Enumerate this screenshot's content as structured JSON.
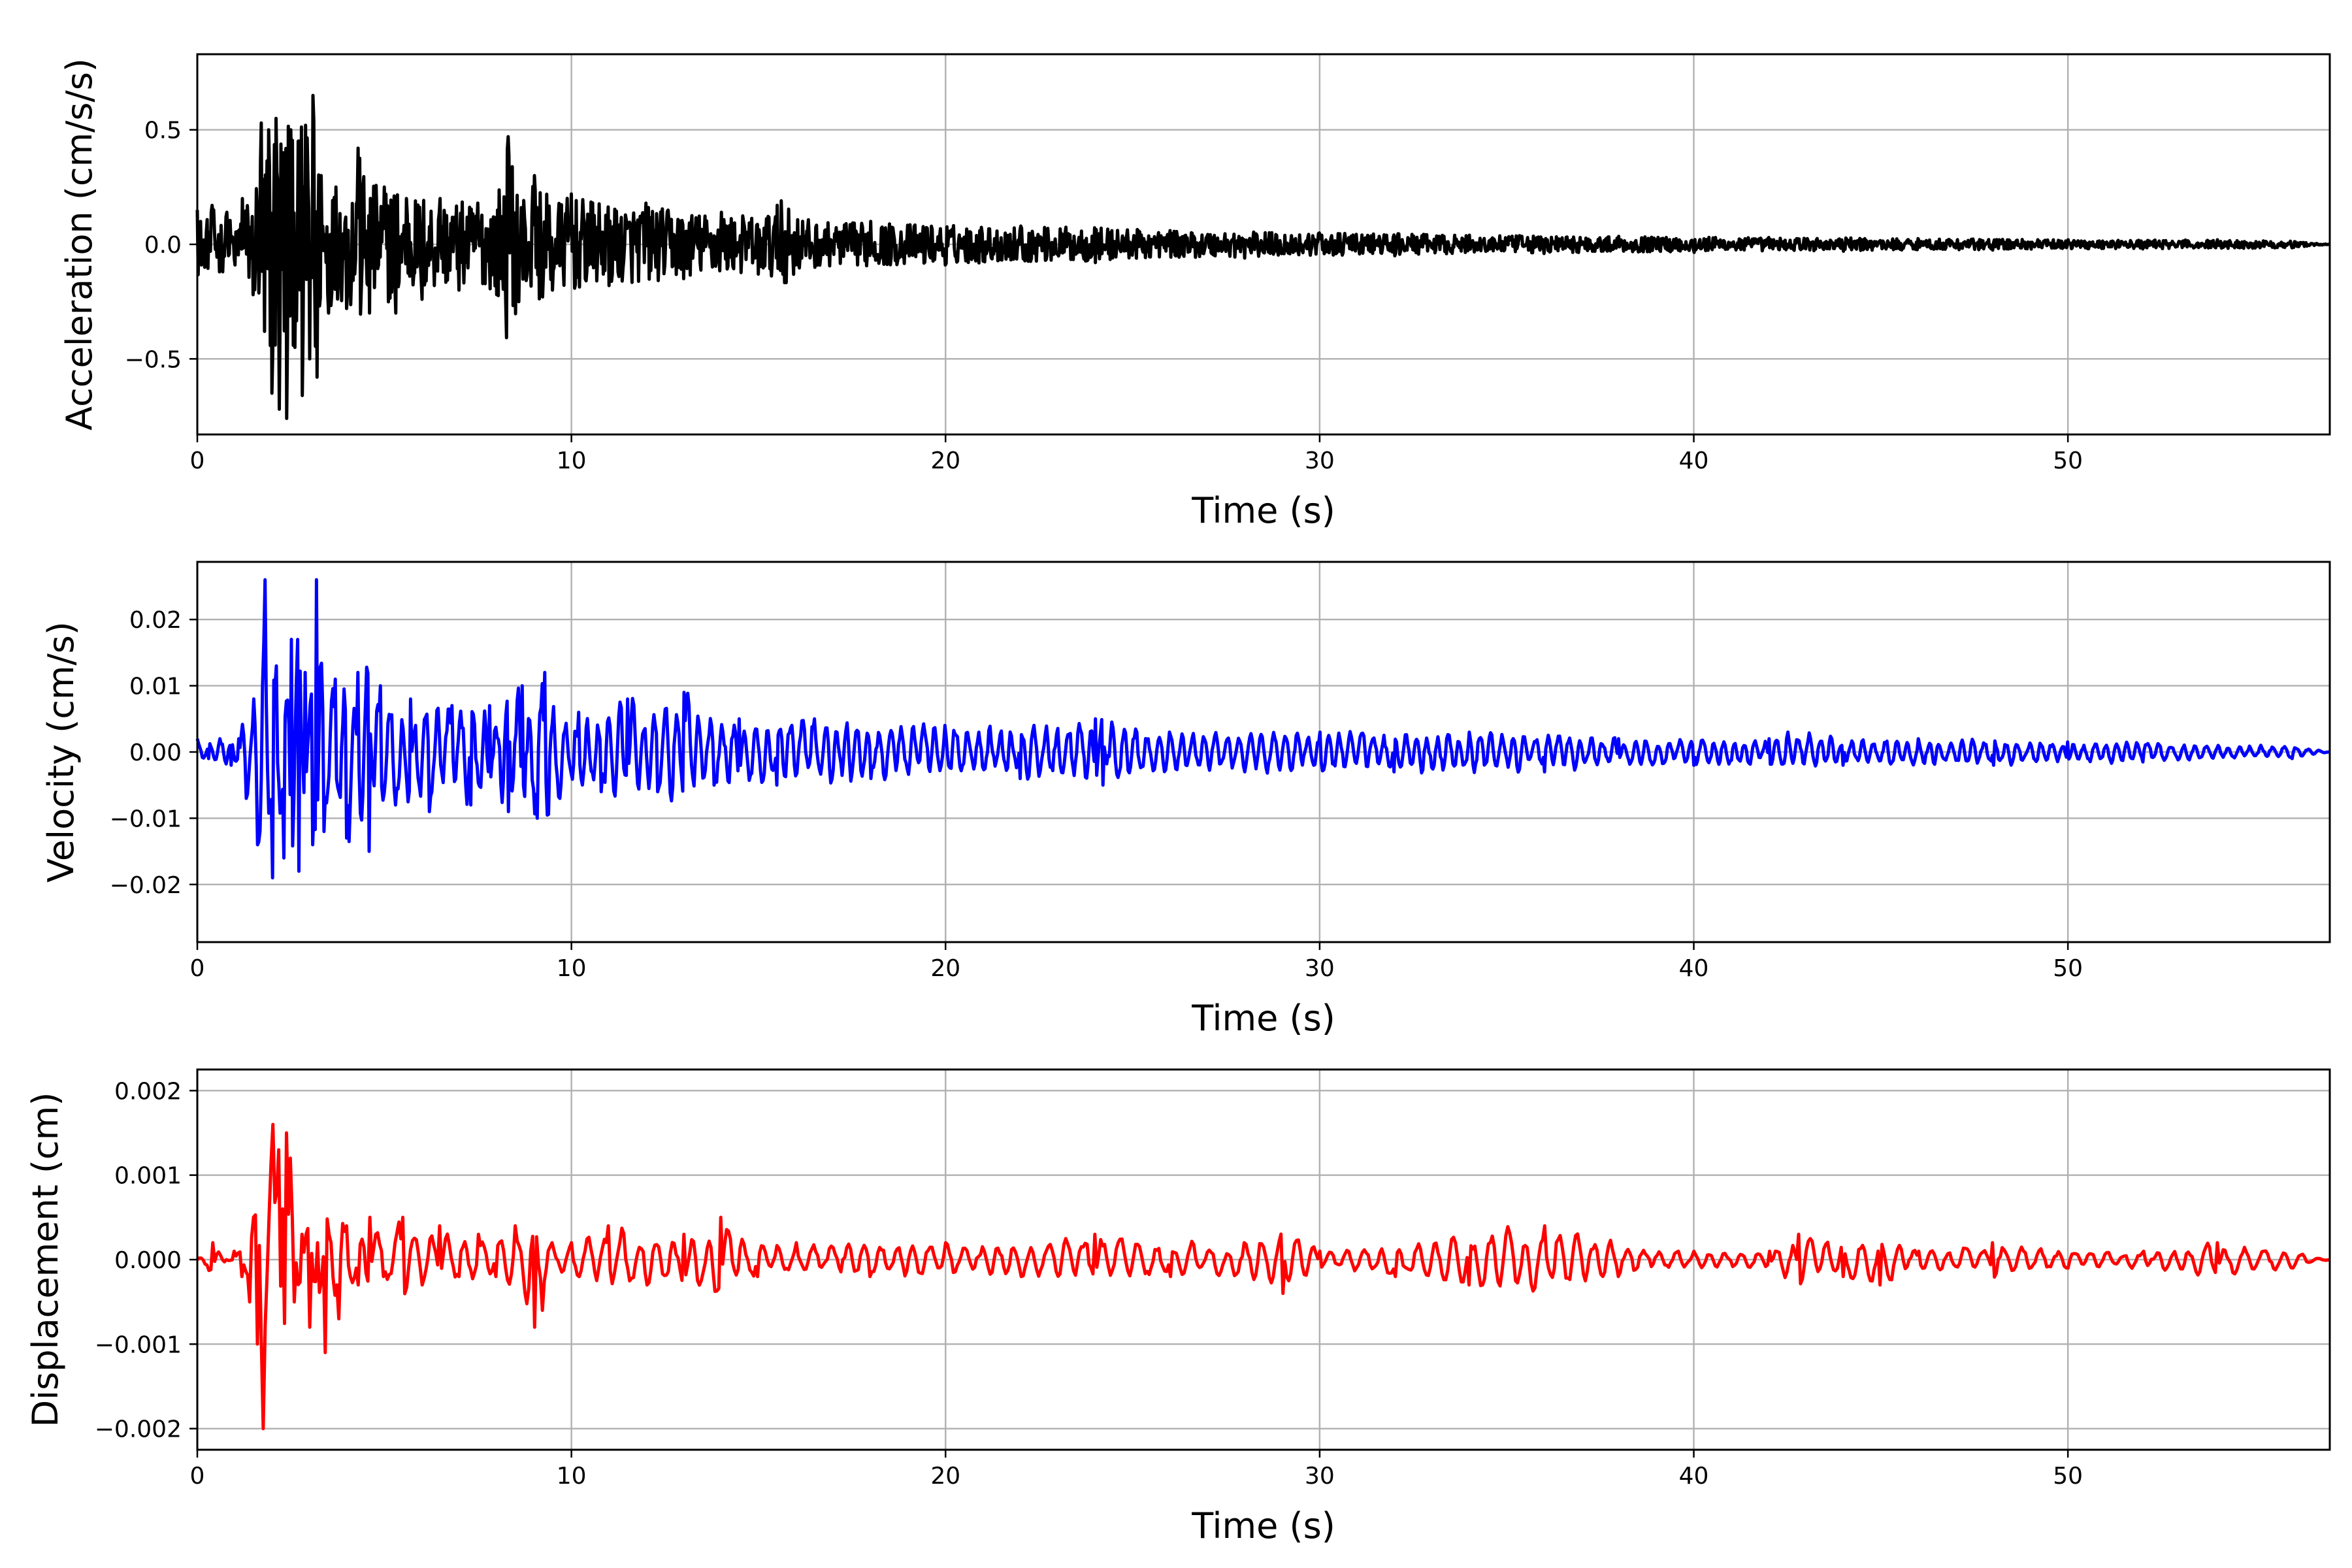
{
  "chart_data": [
    {
      "type": "line",
      "xlabel": "Time (s)",
      "ylabel": "Acceleration (cm/s/s)",
      "xlim": [
        0,
        57
      ],
      "ylim": [
        -0.83,
        0.83
      ],
      "xticks": [
        0,
        10,
        20,
        30,
        40,
        50
      ],
      "xtick_labels": [
        "0",
        "10",
        "20",
        "30",
        "40",
        "50"
      ],
      "yticks": [
        -0.5,
        0.0,
        0.5
      ],
      "ytick_labels": [
        "−0.5",
        "0.0",
        "0.5"
      ],
      "grid": true,
      "series": [
        {
          "color": "#000000",
          "x": [
            0,
            0.2,
            0.4,
            0.6,
            0.8,
            1.0,
            1.2,
            1.5,
            1.7,
            1.8,
            1.9,
            2.0,
            2.1,
            2.2,
            2.3,
            2.4,
            2.5,
            2.6,
            2.7,
            2.8,
            2.9,
            3.0,
            3.1,
            3.2,
            3.3,
            3.5,
            3.7,
            4.0,
            4.3,
            4.6,
            5.0,
            5.3,
            5.6,
            6.0,
            6.5,
            7.0,
            7.5,
            8.0,
            8.3,
            8.6,
            9.0,
            9.5,
            10.0,
            11.0,
            12.0,
            13.0,
            14.0,
            15.0,
            15.6,
            16.5,
            18,
            20,
            22,
            24,
            26,
            28,
            30,
            32,
            34,
            36,
            38,
            40,
            42,
            44,
            46,
            48,
            50,
            52,
            54,
            56,
            57
          ],
          "y": [
            0.15,
            -0.1,
            0.17,
            -0.12,
            0.14,
            -0.09,
            0.2,
            -0.22,
            0.53,
            -0.38,
            0.5,
            -0.65,
            0.55,
            -0.72,
            0.4,
            -0.76,
            0.5,
            -0.45,
            0.45,
            -0.66,
            0.52,
            -0.5,
            0.65,
            -0.58,
            0.3,
            -0.3,
            0.25,
            -0.28,
            0.42,
            -0.3,
            0.25,
            -0.3,
            0.2,
            -0.24,
            0.2,
            -0.2,
            0.18,
            -0.22,
            0.47,
            -0.25,
            0.3,
            -0.2,
            0.22,
            -0.18,
            0.18,
            -0.15,
            0.14,
            -0.13,
            0.19,
            -0.1,
            0.1,
            -0.09,
            0.08,
            -0.08,
            0.06,
            -0.06,
            0.05,
            -0.05,
            0.04,
            -0.04,
            0.035,
            -0.035,
            0.03,
            -0.03,
            0.025,
            -0.025,
            0.02,
            -0.02,
            0.02,
            -0.015,
            0.0
          ]
        }
      ]
    },
    {
      "type": "line",
      "xlabel": "Time (s)",
      "ylabel": "Velocity (cm/s)",
      "xlim": [
        0,
        57
      ],
      "ylim": [
        -0.0287,
        0.0287
      ],
      "xticks": [
        0,
        10,
        20,
        30,
        40,
        50
      ],
      "xtick_labels": [
        "0",
        "10",
        "20",
        "30",
        "40",
        "50"
      ],
      "yticks": [
        -0.02,
        -0.01,
        0.0,
        0.01,
        0.02
      ],
      "ytick_labels": [
        "−0.02",
        "−0.01",
        "0.00",
        "0.01",
        "0.02"
      ],
      "grid": true,
      "series": [
        {
          "color": "#0000ff",
          "x": [
            0,
            0.3,
            0.6,
            0.9,
            1.1,
            1.3,
            1.5,
            1.6,
            1.8,
            2.0,
            2.1,
            2.3,
            2.5,
            2.7,
            2.9,
            3.1,
            3.2,
            3.4,
            3.7,
            4.0,
            4.3,
            4.6,
            4.9,
            5.3,
            5.7,
            6.2,
            6.8,
            7.3,
            7.8,
            8.3,
            8.7,
            9.1,
            9.3,
            9.7,
            10.2,
            10.8,
            11.5,
            12.3,
            13.0,
            13.8,
            14.5,
            15.5,
            16.5,
            18,
            20,
            22,
            24,
            24.2,
            26,
            28,
            30,
            32,
            34,
            36,
            38,
            40,
            42,
            42.5,
            44,
            46,
            48,
            50,
            52,
            54,
            56,
            57
          ],
          "y": [
            0.002,
            -0.001,
            0.002,
            -0.002,
            0.002,
            -0.007,
            0.008,
            -0.014,
            0.026,
            -0.019,
            0.013,
            -0.016,
            0.017,
            -0.018,
            0.012,
            -0.014,
            0.026,
            -0.012,
            0.011,
            -0.013,
            0.012,
            -0.015,
            0.01,
            -0.008,
            0.008,
            -0.009,
            0.007,
            -0.008,
            0.007,
            -0.009,
            0.01,
            -0.01,
            0.012,
            -0.007,
            0.006,
            -0.006,
            0.008,
            -0.006,
            0.009,
            -0.005,
            0.005,
            -0.005,
            0.005,
            -0.004,
            0.004,
            -0.004,
            0.005,
            -0.005,
            0.003,
            -0.003,
            0.003,
            -0.003,
            0.003,
            -0.003,
            0.002,
            -0.002,
            0.002,
            0.003,
            -0.002,
            0.002,
            -0.002,
            0.0015,
            -0.0015,
            0.001,
            -0.001,
            0.0
          ]
        }
      ]
    },
    {
      "type": "line",
      "xlabel": "Time (s)",
      "ylabel": "Displacement (cm)",
      "xlim": [
        0,
        57
      ],
      "ylim": [
        -0.00225,
        0.00225
      ],
      "xticks": [
        0,
        10,
        20,
        30,
        40,
        50
      ],
      "xtick_labels": [
        "0",
        "10",
        "20",
        "30",
        "40",
        "50"
      ],
      "yticks": [
        -0.002,
        -0.001,
        0.0,
        0.001,
        0.002
      ],
      "ytick_labels": [
        "−0.002",
        "−0.001",
        "0.000",
        "0.001",
        "0.002"
      ],
      "grid": true,
      "series": [
        {
          "color": "#ff0000",
          "x": [
            0,
            0.4,
            0.8,
            1.0,
            1.2,
            1.4,
            1.6,
            1.75,
            1.9,
            2.0,
            2.1,
            2.2,
            2.3,
            2.4,
            2.5,
            2.6,
            2.8,
            3.0,
            3.2,
            3.4,
            3.6,
            3.8,
            4.0,
            4.3,
            4.6,
            5.0,
            5.5,
            6.0,
            6.5,
            7.0,
            7.5,
            8.0,
            8.5,
            9.0,
            9.2,
            9.5,
            10.0,
            11.0,
            12.0,
            13.0,
            14.0,
            15.0,
            16.0,
            18.0,
            20,
            22,
            24,
            26,
            28,
            29,
            30,
            32,
            34,
            36,
            38,
            40,
            42,
            42.8,
            44,
            45,
            46,
            48,
            50,
            52,
            54,
            56,
            57
          ],
          "y": [
            0.0,
            0.0002,
            0.0,
            0.0001,
            -0.0002,
            -0.0005,
            -0.001,
            -0.002,
            0.0005,
            0.0016,
            0.0008,
            0.0013,
            0.0006,
            0.0015,
            0.0012,
            -0.0005,
            0.0003,
            -0.0008,
            0.0002,
            -0.0011,
            0.0002,
            -0.0007,
            0.0004,
            -0.0003,
            0.0005,
            -0.0002,
            0.0005,
            -0.0003,
            0.0004,
            -0.0002,
            0.0003,
            -0.0002,
            0.0004,
            -0.0008,
            -0.0006,
            0.0002,
            0.0002,
            0.0004,
            -0.0003,
            0.0003,
            0.0005,
            -0.0002,
            0.0002,
            -0.0002,
            0.0002,
            -0.0002,
            0.0003,
            -0.0002,
            0.0002,
            -0.0004,
            0.0001,
            -0.0002,
            -0.0003,
            0.0004,
            -0.0002,
            0.0001,
            0.0001,
            0.0003,
            -0.0002,
            -0.0003,
            0.0001,
            0.0002,
            -0.0001,
            0.0001,
            0.0002,
            -0.0001,
            0.0
          ]
        }
      ]
    }
  ]
}
